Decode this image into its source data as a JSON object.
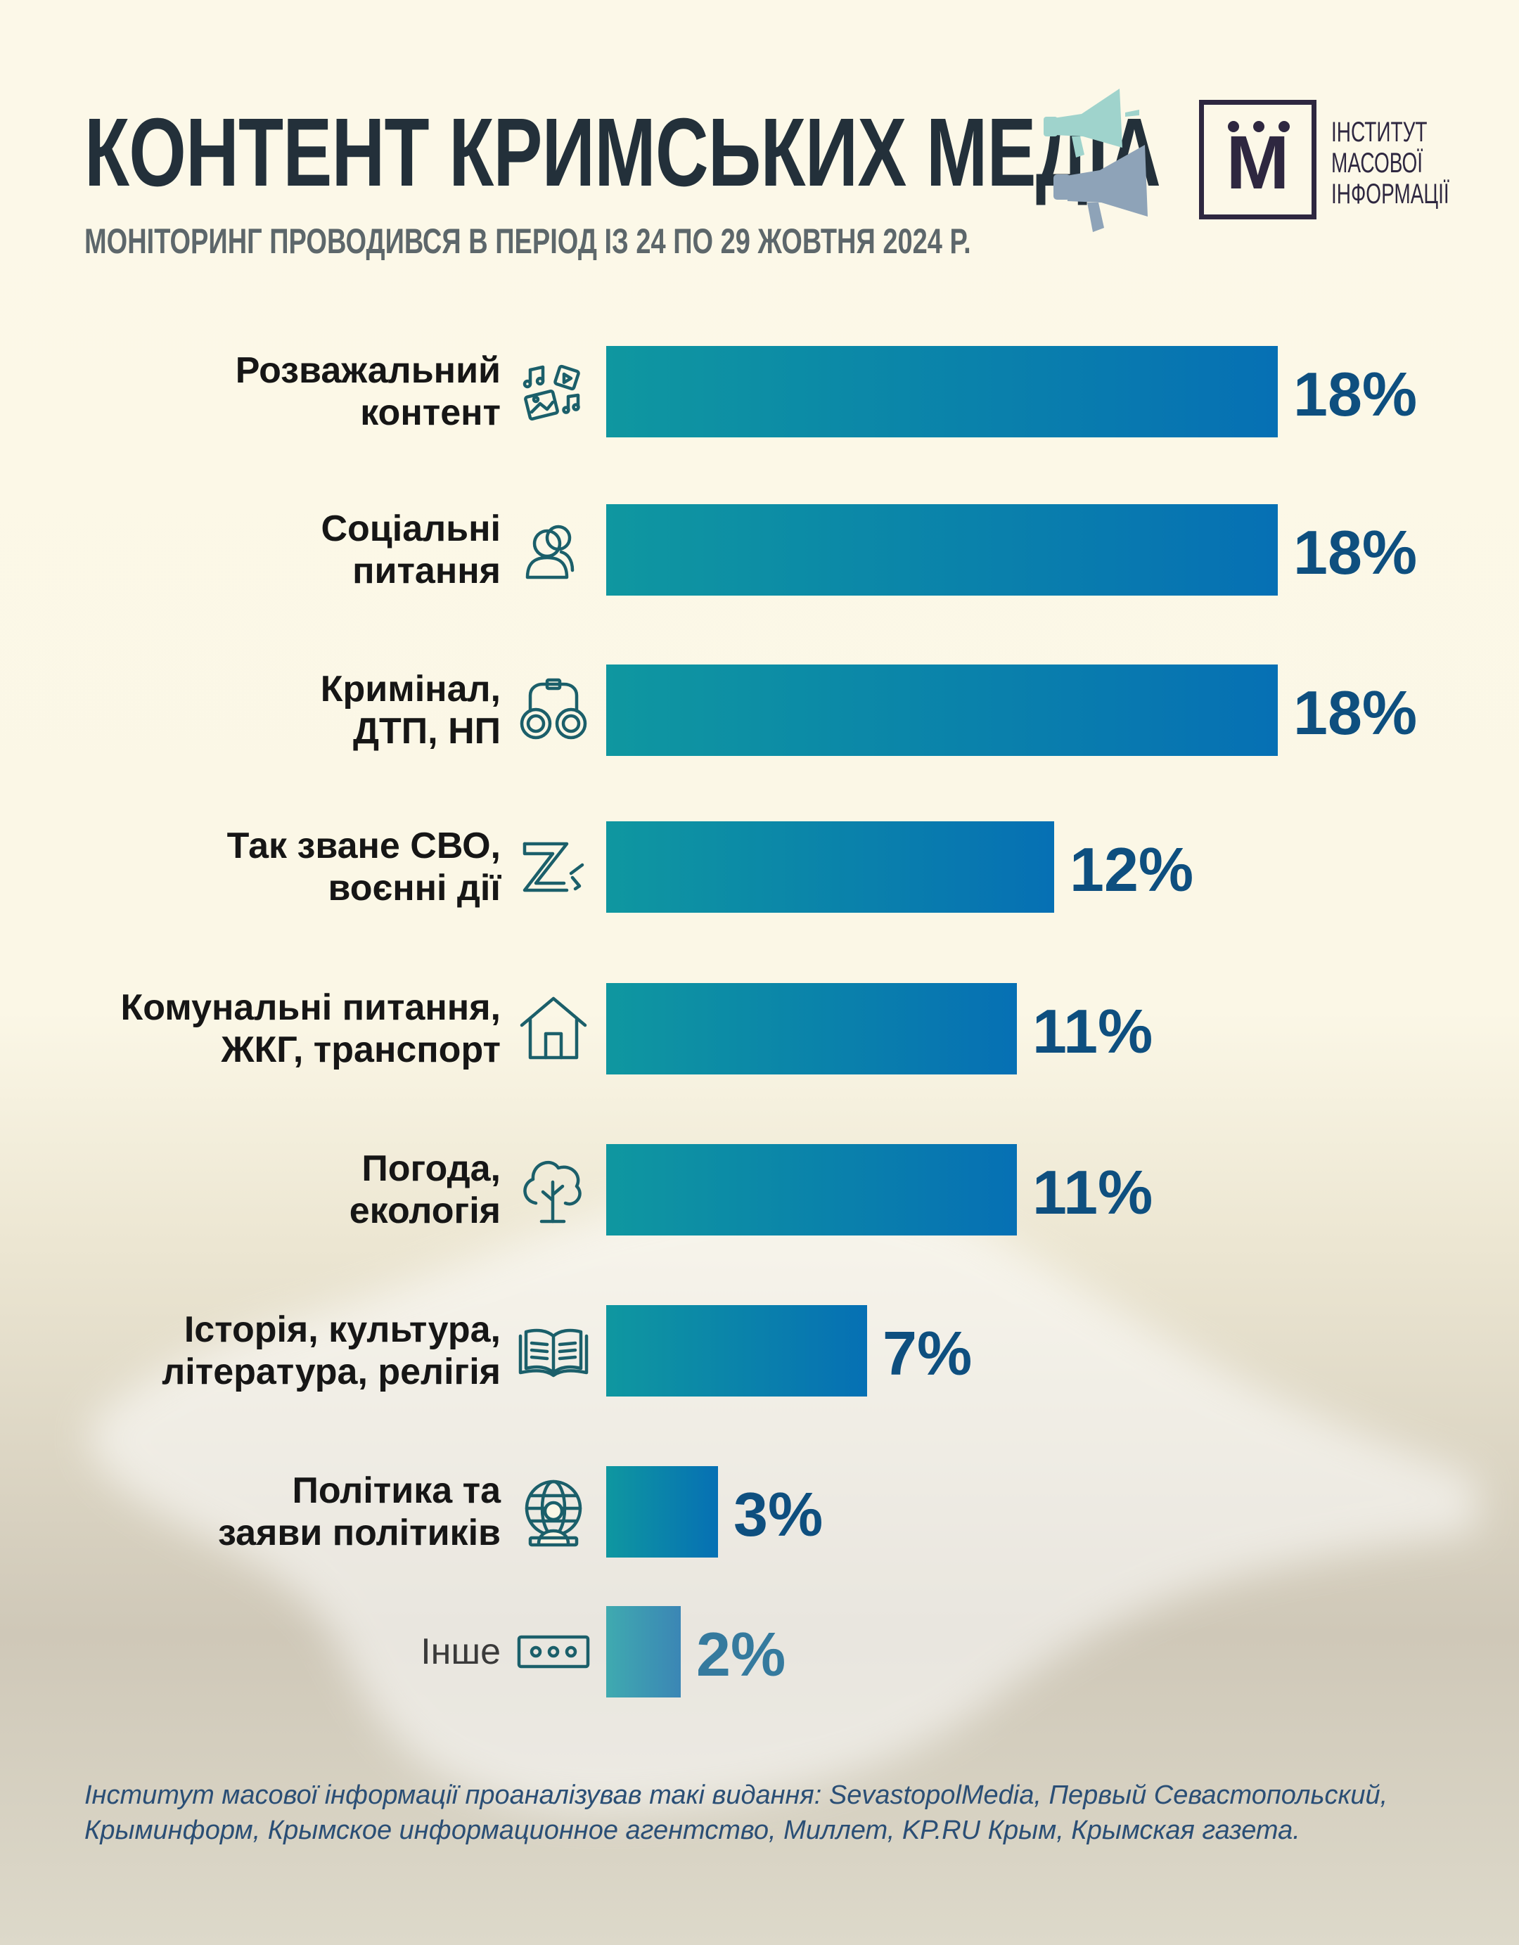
{
  "header": {
    "title": "КОНТЕНТ КРИМСЬКИХ МЕДІА",
    "subtitle": "МОНІТОРИНГ ПРОВОДИВСЯ В ПЕРІОД ІЗ 24 ПО 29 ЖОВТНЯ 2024 Р."
  },
  "logo": {
    "letter": "М",
    "lines": [
      "ІНСТИТУТ",
      "МАСОВОЇ",
      "ІНФОРМАЦІЇ"
    ]
  },
  "decor": {
    "icon": "megaphone-icon",
    "colors": {
      "megaphone_top": "#9fd3cc",
      "megaphone_bottom": "#8ea3b8",
      "logo": "#2e2740"
    }
  },
  "chart_data": {
    "type": "bar",
    "orientation": "horizontal",
    "unit": "%",
    "xlim": [
      0,
      18
    ],
    "grid": false,
    "legend": "none",
    "bar_gradient": [
      "#0f97a0",
      "#0670b4"
    ],
    "value_color": "#0e4f7f",
    "categories": [
      {
        "lines": [
          "Розважальний",
          "контент"
        ],
        "icon": "media-entertainment-icon"
      },
      {
        "lines": [
          "Соціальні",
          "питання"
        ],
        "icon": "people-icon"
      },
      {
        "lines": [
          "Кримінал,",
          "ДТП, НП"
        ],
        "icon": "handcuffs-icon"
      },
      {
        "lines": [
          "Так зване СВО,",
          "воєнні дії"
        ],
        "icon": "z-symbol-icon"
      },
      {
        "lines": [
          "Комунальні питання,",
          "ЖКГ, транспорт"
        ],
        "icon": "house-icon"
      },
      {
        "lines": [
          "Погода,",
          "екологія"
        ],
        "icon": "tree-icon"
      },
      {
        "lines": [
          "Історія, культура,",
          "література, релігія"
        ],
        "icon": "open-book-icon"
      },
      {
        "lines": [
          "Політика та",
          "заяви політиків"
        ],
        "icon": "globe-speaker-icon"
      },
      {
        "lines": [
          "Інше"
        ],
        "icon": "dots-box-icon"
      }
    ],
    "values": [
      18,
      18,
      18,
      12,
      11,
      11,
      7,
      3,
      2
    ],
    "value_labels": [
      "18%",
      "18%",
      "18%",
      "12%",
      "11%",
      "11%",
      "7%",
      "3%",
      "2%"
    ]
  },
  "footnote": {
    "lines": [
      "Інститут масової інформації проаналізував такі видання: SevastopolMedia, Первый Севастопольский,",
      "Крыминформ, Крымское информационное агентство, Миллет, KP.RU Крым, Крымская газета."
    ]
  }
}
